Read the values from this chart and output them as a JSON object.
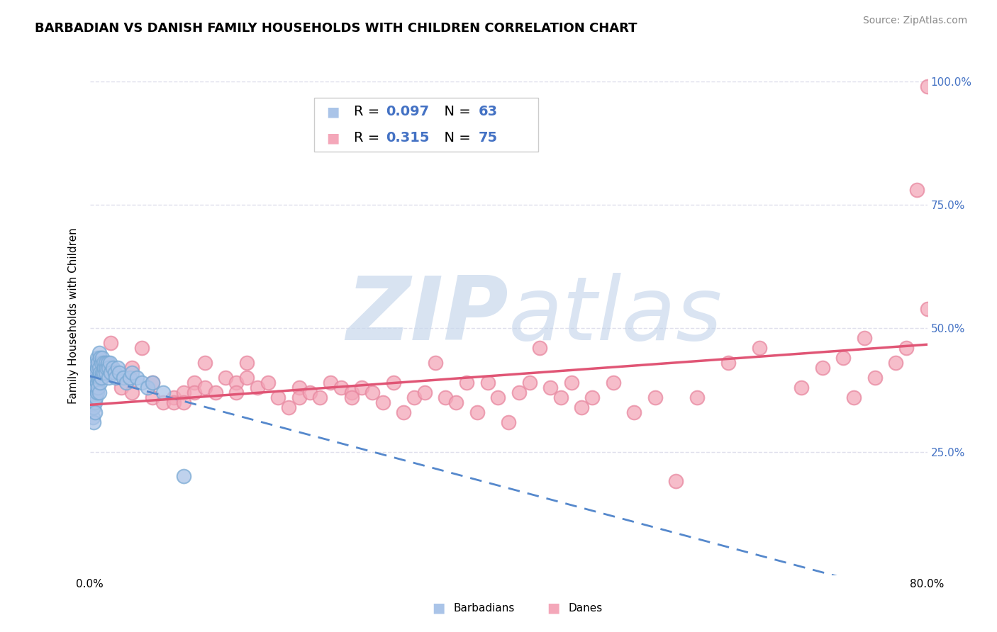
{
  "title": "BARBADIAN VS DANISH FAMILY HOUSEHOLDS WITH CHILDREN CORRELATION CHART",
  "source": "Source: ZipAtlas.com",
  "ylabel": "Family Households with Children",
  "barbadian_color": "#aac4e8",
  "danish_color": "#f4a7b9",
  "barbadian_edge": "#7aaad4",
  "danish_edge": "#e888a0",
  "barbadian_line_color": "#5588cc",
  "danish_line_color": "#e05575",
  "background_color": "#ffffff",
  "watermark_color": "#ccddf0",
  "watermark_text": "ZIPAtlas",
  "title_fontsize": 13,
  "axis_label_fontsize": 11,
  "tick_fontsize": 11,
  "legend_fontsize": 14,
  "source_fontsize": 10,
  "xmin": 0.0,
  "xmax": 0.8,
  "ymin": 0.0,
  "ymax": 1.05,
  "grid_color": "#e0e0ec",
  "r_barbadian": 0.097,
  "n_barbadian": 63,
  "r_danish": 0.315,
  "n_danish": 75,
  "blue_text_color": "#4472c4",
  "barb_x": [
    0.002,
    0.002,
    0.003,
    0.003,
    0.003,
    0.003,
    0.004,
    0.004,
    0.004,
    0.004,
    0.004,
    0.005,
    0.005,
    0.005,
    0.005,
    0.005,
    0.006,
    0.006,
    0.006,
    0.007,
    0.007,
    0.007,
    0.007,
    0.008,
    0.008,
    0.008,
    0.009,
    0.009,
    0.009,
    0.009,
    0.01,
    0.01,
    0.01,
    0.011,
    0.011,
    0.012,
    0.012,
    0.013,
    0.013,
    0.014,
    0.015,
    0.015,
    0.016,
    0.017,
    0.018,
    0.018,
    0.019,
    0.02,
    0.022,
    0.024,
    0.025,
    0.027,
    0.028,
    0.032,
    0.035,
    0.038,
    0.04,
    0.045,
    0.05,
    0.055,
    0.06,
    0.07,
    0.09
  ],
  "barb_y": [
    0.38,
    0.35,
    0.4,
    0.37,
    0.34,
    0.32,
    0.42,
    0.39,
    0.36,
    0.34,
    0.31,
    0.43,
    0.4,
    0.38,
    0.35,
    0.33,
    0.41,
    0.38,
    0.36,
    0.44,
    0.42,
    0.39,
    0.37,
    0.43,
    0.4,
    0.38,
    0.45,
    0.42,
    0.4,
    0.37,
    0.44,
    0.41,
    0.39,
    0.43,
    0.4,
    0.44,
    0.41,
    0.43,
    0.41,
    0.42,
    0.43,
    0.41,
    0.42,
    0.43,
    0.42,
    0.4,
    0.43,
    0.41,
    0.42,
    0.41,
    0.4,
    0.42,
    0.41,
    0.4,
    0.39,
    0.4,
    0.41,
    0.4,
    0.39,
    0.38,
    0.39,
    0.37,
    0.2
  ],
  "dane_x": [
    0.02,
    0.03,
    0.04,
    0.04,
    0.05,
    0.06,
    0.06,
    0.07,
    0.08,
    0.08,
    0.09,
    0.09,
    0.1,
    0.1,
    0.11,
    0.11,
    0.12,
    0.13,
    0.14,
    0.14,
    0.15,
    0.15,
    0.16,
    0.17,
    0.18,
    0.19,
    0.2,
    0.2,
    0.21,
    0.22,
    0.23,
    0.24,
    0.25,
    0.25,
    0.26,
    0.27,
    0.28,
    0.29,
    0.3,
    0.31,
    0.32,
    0.33,
    0.34,
    0.35,
    0.36,
    0.37,
    0.38,
    0.39,
    0.4,
    0.41,
    0.42,
    0.43,
    0.44,
    0.45,
    0.46,
    0.47,
    0.48,
    0.5,
    0.52,
    0.54,
    0.56,
    0.58,
    0.61,
    0.64,
    0.68,
    0.7,
    0.72,
    0.73,
    0.74,
    0.75,
    0.77,
    0.78,
    0.79,
    0.8,
    0.8
  ],
  "dane_y": [
    0.47,
    0.38,
    0.42,
    0.37,
    0.46,
    0.36,
    0.39,
    0.35,
    0.36,
    0.35,
    0.37,
    0.35,
    0.39,
    0.37,
    0.43,
    0.38,
    0.37,
    0.4,
    0.39,
    0.37,
    0.43,
    0.4,
    0.38,
    0.39,
    0.36,
    0.34,
    0.38,
    0.36,
    0.37,
    0.36,
    0.39,
    0.38,
    0.37,
    0.36,
    0.38,
    0.37,
    0.35,
    0.39,
    0.33,
    0.36,
    0.37,
    0.43,
    0.36,
    0.35,
    0.39,
    0.33,
    0.39,
    0.36,
    0.31,
    0.37,
    0.39,
    0.46,
    0.38,
    0.36,
    0.39,
    0.34,
    0.36,
    0.39,
    0.33,
    0.36,
    0.19,
    0.36,
    0.43,
    0.46,
    0.38,
    0.42,
    0.44,
    0.36,
    0.48,
    0.4,
    0.43,
    0.46,
    0.78,
    0.54,
    0.99
  ]
}
